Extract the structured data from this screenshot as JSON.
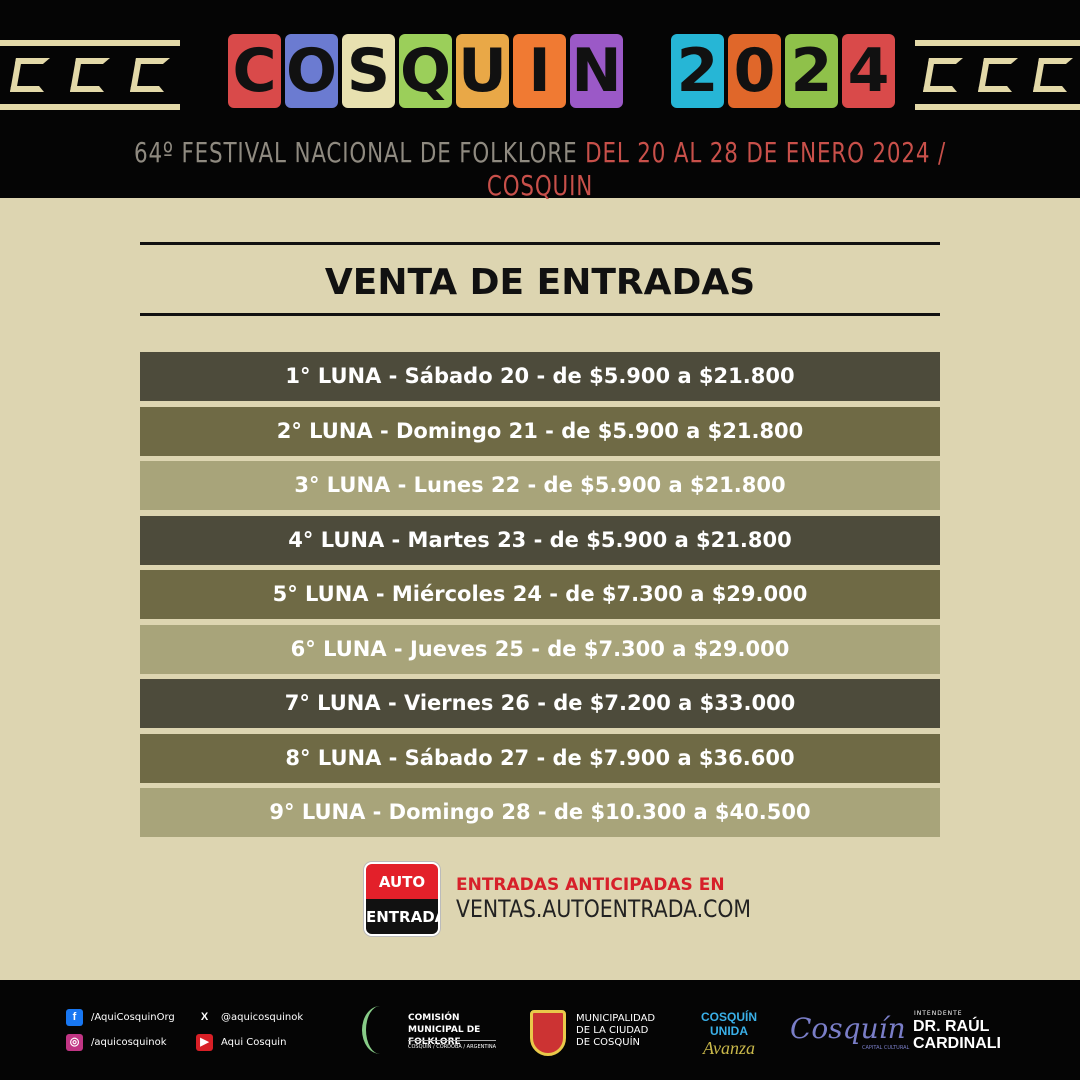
{
  "header": {
    "logo_text": "COSQUIN 2024",
    "logo_colors": [
      "#d94a4a",
      "#6b7bd1",
      "#e8e1b0",
      "#9bcf5a",
      "#e9a847",
      "#f07a33",
      "#9b59c7",
      "#26b6d6",
      "#e0672a",
      "#8fc14a"
    ],
    "subtitle_left": "64º FESTIVAL NACIONAL DE FOLKLORE",
    "subtitle_right": "DEL 20 AL 28 DE ENERO 2024 / COSQUIN"
  },
  "title": "VENTA DE ENTRADAS",
  "rows": [
    {
      "text": "1° LUNA - Sábado 20 - de $5.900 a $21.800",
      "shade": "dark"
    },
    {
      "text": "2° LUNA - Domingo 21 - de $5.900 a $21.800",
      "shade": "mid"
    },
    {
      "text": "3° LUNA - Lunes 22 - de $5.900 a $21.800",
      "shade": "light"
    },
    {
      "text": "4° LUNA - Martes 23 - de $5.900 a $21.800",
      "shade": "dark"
    },
    {
      "text": "5° LUNA - Miércoles 24 - de $7.300 a $29.000",
      "shade": "mid"
    },
    {
      "text": "6° LUNA - Jueves 25 - de $7.300 a $29.000",
      "shade": "light"
    },
    {
      "text": "7° LUNA - Viernes 26 - de $7.200 a $33.000",
      "shade": "dark"
    },
    {
      "text": "8° LUNA - Sábado 27 - de $7.900 a $36.600",
      "shade": "mid"
    },
    {
      "text": "9° LUNA - Domingo 28 - de $10.300 a $40.500",
      "shade": "light"
    }
  ],
  "promo": {
    "logo_top": "AUTO",
    "logo_bottom": "ENTRADA",
    "line1": "ENTRADAS ANTICIPADAS EN",
    "line2": "VENTAS.AUTOENTRADA.COM"
  },
  "footer": {
    "facebook": "/AquiCosquinOrg",
    "x": "@aquicosquinok",
    "instagram": "/aquicosquinok",
    "youtube": "Aqui Cosquin",
    "comision": "COMISIÓN MUNICIPAL DE FOLKLORE",
    "comision_sub": "COSQUÍN / CÓRDOBA / ARGENTINA",
    "municipalidad": "MUNICIPALIDAD DE LA CIUDAD DE COSQUÍN",
    "unida_1": "COSQUÍN",
    "unida_2": "UNIDA",
    "unida_3": "Avanza",
    "capital": "Cosquín",
    "capital_sub": "CAPITAL CULTURAL",
    "intendente": "INTENDENTE",
    "intendente_name_1": "DR. RAÚL",
    "intendente_name_2": "CARDINALI"
  }
}
